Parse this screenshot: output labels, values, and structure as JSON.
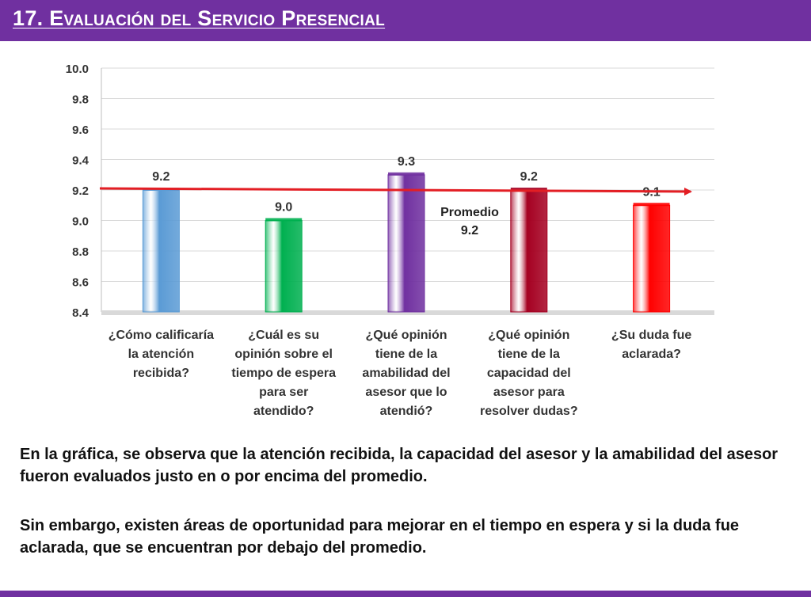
{
  "slide": {
    "title": "17. Evaluación del Servicio Presencial",
    "accent_color": "#7030a0"
  },
  "paragraphs": [
    "En la gráfica, se observa que la atención recibida, la capacidad del asesor y la amabilidad del asesor fueron evaluados justo en o por encima del promedio.",
    "Sin embargo, existen áreas de oportunidad para mejorar en el tiempo en espera y si la duda fue aclarada, que se encuentran por debajo del promedio."
  ],
  "chart_data": {
    "type": "bar",
    "categories": [
      "¿Cómo calificaría la atención recibida?",
      "¿Cuál es su opinión sobre el tiempo de espera para ser atendido?",
      "¿Qué opinión tiene de la amabilidad del asesor que lo atendió?",
      "¿Qué opinión tiene de la capacidad del asesor para resolver dudas?",
      "¿Su duda fue aclarada?"
    ],
    "category_lines": [
      [
        "¿Cómo calificaría",
        "la atención",
        "recibida?"
      ],
      [
        "¿Cuál es su",
        "opinión sobre el",
        "tiempo de espera",
        "para ser",
        "atendido?"
      ],
      [
        "¿Qué opinión",
        "tiene de la",
        "amabilidad del",
        "asesor que lo",
        "atendió?"
      ],
      [
        "¿Qué opinión",
        "tiene de la",
        "capacidad del",
        "asesor para",
        "resolver dudas?"
      ],
      [
        "¿Su duda fue",
        "aclarada?"
      ]
    ],
    "values": [
      9.2,
      9.0,
      9.3,
      9.2,
      9.1
    ],
    "value_labels": [
      "9.2",
      "9.0",
      "9.3",
      "9.2",
      "9.1"
    ],
    "bar_colors": [
      "#5b9bd5",
      "#00b050",
      "#7030a0",
      "#a50021",
      "#ff0000"
    ],
    "ylim": [
      8.4,
      10.0
    ],
    "yticks": [
      "10.0",
      "9.8",
      "9.6",
      "9.4",
      "9.2",
      "9.0",
      "8.8",
      "8.6",
      "8.4"
    ],
    "grid": true,
    "average": {
      "value": 9.2,
      "label": "Promedio",
      "value_label": "9.2",
      "color": "#e31e24"
    }
  }
}
